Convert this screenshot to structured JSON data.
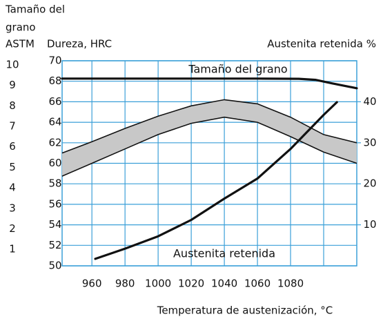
{
  "chart_data": {
    "type": "multi-axis-line",
    "y3label": [
      "Tamaño del",
      "grano",
      "ASTM"
    ],
    "ylabel": "Dureza, HRC",
    "y2label": "Austenita retenida %",
    "xlabel": "Temperatura de austenización, °C",
    "xlim": [
      942,
      1120
    ],
    "xticks": [
      960,
      980,
      1000,
      1020,
      1040,
      1060,
      1080
    ],
    "xgrid": [
      960,
      980,
      1000,
      1020,
      1040,
      1060,
      1080,
      1100
    ],
    "ylim": [
      50,
      70
    ],
    "yticks": [
      50,
      52,
      54,
      56,
      58,
      60,
      62,
      64,
      66,
      68,
      70
    ],
    "y2lim": [
      0,
      50
    ],
    "y2ticks": [
      10,
      20,
      30,
      40
    ],
    "y3lim": [
      0.2,
      10.2
    ],
    "y3ticks": [
      1,
      2,
      3,
      4,
      5,
      6,
      7,
      8,
      9,
      10
    ],
    "grid": true,
    "grid_color": "#3a9fd8",
    "band": {
      "color": "#c8c8c8",
      "x": [
        942,
        960,
        980,
        1000,
        1020,
        1040,
        1060,
        1080,
        1100,
        1120
      ],
      "upper": [
        61.0,
        62.1,
        63.4,
        64.6,
        65.6,
        66.2,
        65.8,
        64.5,
        62.8,
        62.0
      ],
      "lower": [
        58.75,
        60.0,
        61.4,
        62.8,
        63.9,
        64.5,
        64.0,
        62.6,
        61.1,
        60.0
      ]
    },
    "series": [
      {
        "name": "Tamaño del grano",
        "color": "#111111",
        "axis": "y3",
        "x": [
          942,
          1000,
          1060,
          1085,
          1095,
          1105,
          1120
        ],
        "values": [
          9.33,
          9.33,
          9.33,
          9.32,
          9.27,
          9.1,
          8.86
        ]
      },
      {
        "name": "Austenita retenida",
        "color": "#111111",
        "axis": "y2",
        "x": [
          962,
          980,
          1000,
          1020,
          1040,
          1060,
          1080,
          1100,
          1108
        ],
        "values": [
          1.7,
          4.2,
          7.2,
          11.2,
          16.4,
          21.3,
          28.5,
          36.8,
          39.9
        ]
      }
    ]
  }
}
